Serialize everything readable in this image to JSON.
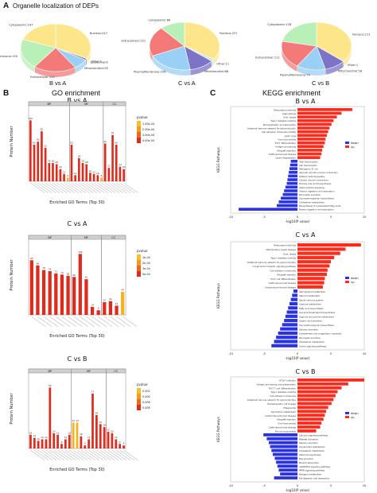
{
  "figure": {
    "panel_a_letter": "A",
    "panel_a_title": "Organelle localization of DEPs",
    "panel_b_letter": "B",
    "panel_b_title": "GO enrichment",
    "panel_c_letter": "C",
    "panel_c_title": "KEGG enrichment"
  },
  "colors": {
    "pie": [
      "#fde68a",
      "#bfe8ea",
      "#7d74c8",
      "#9ad0f5",
      "#f47a7a",
      "#b9f0b7"
    ],
    "go_bar": "#e02a1c",
    "go_bar_alt": "#f6b21c",
    "kegg_up": "#ff2a1a",
    "kegg_down": "#2a32e6"
  },
  "chart_data": [
    {
      "type": "pie",
      "title": "B vs A",
      "slices": [
        {
          "label": "Nucleus:247",
          "value": 247
        },
        {
          "label": "Other:1",
          "value": 1
        },
        {
          "label": "Lysosomal:8",
          "value": 8
        },
        {
          "label": "Mitochondrial:52",
          "value": 52
        },
        {
          "label": "Extracellular:150",
          "value": 150
        },
        {
          "label": "Plasma Membrane:155",
          "value": 155
        },
        {
          "label": "Cytoplasmic:147",
          "value": 147
        }
      ]
    },
    {
      "type": "pie",
      "title": "C vs A",
      "slices": [
        {
          "label": "Nucleus:257",
          "value": 257
        },
        {
          "label": "Other:11",
          "value": 11
        },
        {
          "label": "Mitochondrial:86",
          "value": 86
        },
        {
          "label": "PlasmaMembrane:156",
          "value": 156
        },
        {
          "label": "Extracellular:151",
          "value": 151
        },
        {
          "label": "Cytoplasmic:86",
          "value": 86
        }
      ]
    },
    {
      "type": "pie",
      "title": "C vs B",
      "slices": [
        {
          "label": "Nucleus:211",
          "value": 211
        },
        {
          "label": "Other:1",
          "value": 1
        },
        {
          "label": "Mitochondrial:58",
          "value": 58
        },
        {
          "label": "PlasmaMembrane:79",
          "value": 79
        },
        {
          "label": "Extracellular:111",
          "value": 111
        },
        {
          "label": "Cytoplasmic:128",
          "value": 128
        }
      ]
    },
    {
      "type": "bar",
      "title": "B vs A",
      "xlabel": "Enriched GO Terms (Top 30)",
      "ylabel": "Protein Number",
      "groups": [
        "BP",
        "MF",
        "CC"
      ],
      "values": [
        100,
        60,
        65,
        82,
        55,
        30,
        30,
        28,
        20,
        12,
        6,
        60,
        10,
        38,
        30,
        28,
        14,
        12,
        10,
        6,
        62,
        22,
        76,
        60,
        24,
        20
      ],
      "alt_color_indices": [
        10,
        19
      ],
      "legend_title": "pvalue",
      "legend_labels": [
        "1.00e-04",
        "2.00e-04",
        "3.00e-04",
        "4.00e-04"
      ]
    },
    {
      "type": "bar",
      "title": "C vs A",
      "xlabel": "Enriched GO Terms (Top 30)",
      "ylabel": "Protein Number",
      "groups": [
        "BP",
        "MF",
        "CC"
      ],
      "values": [
        95,
        86,
        78,
        76,
        72,
        70,
        68,
        66,
        106,
        62,
        14,
        8,
        22,
        24,
        16,
        40
      ],
      "alt_color_indices": [
        15
      ],
      "legend_title": "pvalue",
      "legend_labels": [
        "1e-04",
        "2e-04",
        "3e-04",
        "4e-04"
      ]
    },
    {
      "type": "bar",
      "title": "C vs B",
      "xlabel": "Enriched GO Terms (Top 30)",
      "ylabel": "Protein Number",
      "groups": [
        "BP",
        "MF",
        "CC"
      ],
      "values": [
        18,
        14,
        10,
        12,
        12,
        80,
        20,
        18,
        6,
        12,
        18,
        34,
        34,
        16,
        4,
        12,
        72,
        44,
        32,
        28,
        22,
        20,
        12,
        6,
        4
      ],
      "alt_color_indices": [
        11,
        12
      ],
      "legend_title": "pvalue",
      "legend_labels": [
        "0.002",
        "0.004",
        "0.006",
        "0.008"
      ]
    },
    {
      "type": "bar",
      "orientation": "horizontal",
      "title": "B vs A",
      "xlabel": "-log10(P value)",
      "ylabel": "KEGG Pathways",
      "legend": [
        "down",
        "up"
      ],
      "xticks": [
        "-10",
        "-5",
        "0",
        "5",
        "10"
      ],
      "xlim": [
        -10,
        10
      ],
      "categories": [
        "Rheumatoid arthritis",
        "Legionellosis",
        "Oxid. stress",
        "Type I diabetes mellitus",
        "Nf degradation and absorption",
        "Intestinal immune network for IgA production",
        "Cell adhesion molecules (CAMs)",
        "Lipid cycle",
        "Viral myocarditis",
        "Th17 differentiation",
        "Antigen processing",
        "Allograft rejection",
        "Graft-versus-host disease",
        "Lysine degradation",
        "Vital transcription",
        "Cell transcription",
        "Pathogenic E. coli",
        "Vascular smooth muscle contraction",
        "Dilated cardiomyopathy",
        "Cardiac muscle contraction",
        "Primary bile acid biosynthesis",
        "Adipocytokine signaling",
        "Vitamin digestion and absorption",
        "Pancreatic secretion",
        "Glycosaminoglycan biosynthesis",
        "Cholesterol metabolism",
        "Biosynthesis of unsaturated fatty acids",
        "Protein digestion and absorption"
      ],
      "values": [
        8.2,
        6.6,
        5.9,
        5.4,
        5.1,
        4.8,
        4.6,
        4.4,
        4.2,
        4.1,
        3.9,
        3.7,
        3.6,
        3.4,
        -1.0,
        -1.1,
        -1.2,
        -1.3,
        -1.4,
        -1.5,
        -1.6,
        -1.8,
        -2.0,
        -2.2,
        -2.5,
        -2.8,
        -3.1,
        -8.8
      ]
    },
    {
      "type": "bar",
      "orientation": "horizontal",
      "title": "C vs A",
      "xlabel": "-log10(P value)",
      "ylabel": "KEGG Pathways",
      "legend": [
        "down",
        "up"
      ],
      "xticks": [
        "-10",
        "-5",
        "0",
        "5",
        "10"
      ],
      "xlim": [
        -10,
        10
      ],
      "categories": [
        "Rheumatoid arthritis",
        "Inflammatory bowel disease",
        "Oxid. stress",
        "Type I diabetes mellitus",
        "Intestinal immune network for IgA production",
        "C-type lectin receptor signaling pathway",
        "Cell adhesion molecules",
        "Allograft rejection",
        "Th17 cell differentiation",
        "Graft-versus-host disease",
        "Autoimmune thyroid disease",
        "Sphingolipid metabolism",
        "Steroid metabolism",
        "Spinal nervous system",
        "Arginine metabolism",
        "Fatty acid biosynthesis",
        "Glycerophospholipid biosynthesis",
        "Arginine and proline metabolism",
        "Gastric acid secretion",
        "Glycosaminoglycan biosynthesis",
        "Salivary secretion",
        "Complement and coagulation cascades",
        "Pancreatic secretion",
        "Cholesterol metabolism",
        "Insulin signaling pathway"
      ],
      "values": [
        9.5,
        7.2,
        6.4,
        5.5,
        5.0,
        4.8,
        4.5,
        4.4,
        4.1,
        4.0,
        3.8,
        -0.6,
        -0.8,
        -1.0,
        -1.2,
        -1.4,
        -1.6,
        -1.8,
        -2.0,
        -2.3,
        -2.6,
        -2.9,
        -3.2,
        -3.5,
        -3.9
      ]
    },
    {
      "type": "bar",
      "orientation": "horizontal",
      "title": "C vs B",
      "xlabel": "-log10(P value)",
      "ylabel": "KEGG Pathways",
      "legend": [
        "down",
        "up"
      ],
      "xticks": [
        "-10",
        "-5",
        "0",
        "5",
        "10"
      ],
      "xlim": [
        -10,
        10
      ],
      "categories": [
        "HTLV-I infection",
        "Antigen processing and presentation",
        "Th17 T cell differentiation",
        "Type I diabetes mellitus",
        "Cell adhesion molecules",
        "Intestinal immune network for IgA production",
        "Hematopoietic cell lineage",
        "Phagosome",
        "Pyrimidine metabolism",
        "Autoimmune thyroid disease",
        "Allograft rejection",
        "Viral myocarditis",
        "Graft-versus-host disease",
        "Purine biosynthesis",
        "Calcium signaling pathway",
        "Platelet activation",
        "Salivary secretion",
        "Glycerolipid metabolism",
        "Cholesterol metabolism",
        "Steroid biosynthesis",
        "Bile secretion",
        "Mineral absorption",
        "cGMP-PKG signaling pathway",
        "PPAR signaling pathway",
        "Nitrogen metabolism",
        "Fat digestion and absorption"
      ],
      "values": [
        10.0,
        7.6,
        6.6,
        6.0,
        5.7,
        5.4,
        5.1,
        4.6,
        4.3,
        4.1,
        3.9,
        3.6,
        3.4,
        2.8,
        -5.1,
        -4.6,
        -4.3,
        -4.1,
        -3.9,
        -3.7,
        -3.4,
        -3.2,
        -3.0,
        -2.8,
        -2.6,
        -3.5
      ]
    }
  ]
}
